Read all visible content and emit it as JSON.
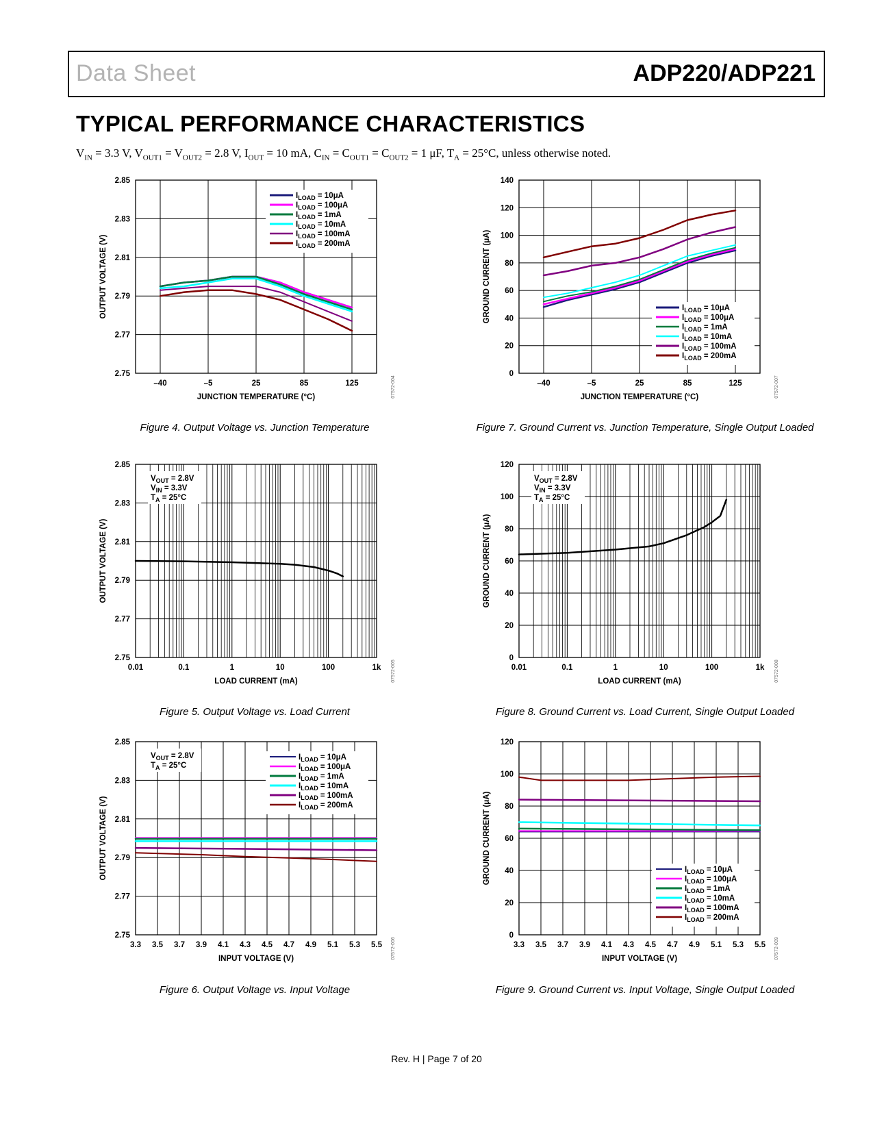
{
  "header": {
    "left": "Data Sheet",
    "right": "ADP220/ADP221"
  },
  "section_title": "TYPICAL PERFORMANCE CHARACTERISTICS",
  "conditions": [
    {
      "t": "V"
    },
    {
      "s": "IN"
    },
    {
      "t": " = 3.3 V, V"
    },
    {
      "s": "OUT1"
    },
    {
      "t": " = V"
    },
    {
      "s": "OUT2"
    },
    {
      "t": " = 2.8 V, I"
    },
    {
      "s": "OUT"
    },
    {
      "t": " = 10 mA, C"
    },
    {
      "s": "IN"
    },
    {
      "t": " = C"
    },
    {
      "s": "OUT1"
    },
    {
      "t": " = C"
    },
    {
      "s": "OUT2"
    },
    {
      "t": " = 1 μF, T"
    },
    {
      "s": "A"
    },
    {
      "t": " = 25°C, unless otherwise noted."
    }
  ],
  "footer": "Rev. H | Page 7 of 20",
  "colors": {
    "10uA": "#1a1a7a",
    "100uA": "#ff00ff",
    "1mA": "#007a3d",
    "10mA": "#00ffff",
    "100mA": "#800080",
    "200mA": "#800000",
    "single": "#000000"
  },
  "chart_data": [
    {
      "id": "fig4",
      "type": "line",
      "caption": "Figure 4. Output Voltage vs. Junction Temperature",
      "code": "07572-004",
      "xlabel": "JUNCTION TEMPERATURE (°C)",
      "ylabel": "OUTPUT VOLTAGE (V)",
      "x_ticks": [
        "–40",
        "–5",
        "25",
        "85",
        "125"
      ],
      "y_ticks": [
        "2.85",
        "2.83",
        "2.81",
        "2.79",
        "2.77",
        "2.75"
      ],
      "ylim": [
        2.75,
        2.85
      ],
      "legend": "top-right",
      "legend_line": "long",
      "series": [
        {
          "key": "10uA",
          "name": "10μA",
          "x": [
            0,
            0.5,
            1,
            1.5,
            2,
            2.5,
            3,
            3.5,
            4
          ],
          "y": [
            2.795,
            2.797,
            2.798,
            2.8,
            2.8,
            2.797,
            2.792,
            2.788,
            2.784
          ],
          "w": 2.5
        },
        {
          "key": "100uA",
          "name": "100μA",
          "x": [
            0,
            0.5,
            1,
            1.5,
            2,
            2.5,
            3,
            3.5,
            4
          ],
          "y": [
            2.795,
            2.797,
            2.798,
            2.8,
            2.8,
            2.797,
            2.792,
            2.788,
            2.784
          ],
          "w": 2.5
        },
        {
          "key": "1mA",
          "name": "1mA",
          "x": [
            0,
            0.5,
            1,
            1.5,
            2,
            2.5,
            3,
            3.5,
            4
          ],
          "y": [
            2.795,
            2.797,
            2.798,
            2.8,
            2.8,
            2.796,
            2.791,
            2.787,
            2.783
          ],
          "w": 2.5
        },
        {
          "key": "10mA",
          "name": "10mA",
          "x": [
            0,
            0.5,
            1,
            1.5,
            2,
            2.5,
            3,
            3.5,
            4
          ],
          "y": [
            2.794,
            2.795,
            2.797,
            2.799,
            2.799,
            2.795,
            2.79,
            2.786,
            2.782
          ],
          "w": 2.5
        },
        {
          "key": "100mA",
          "name": "100mA",
          "x": [
            0,
            0.5,
            1,
            1.5,
            2,
            2.5,
            3,
            3.5,
            4
          ],
          "y": [
            2.793,
            2.794,
            2.795,
            2.795,
            2.795,
            2.792,
            2.787,
            2.782,
            2.777
          ],
          "w": 2
        },
        {
          "key": "200mA",
          "name": "200mA",
          "x": [
            0,
            0.5,
            1,
            1.5,
            2,
            2.5,
            3,
            3.5,
            4
          ],
          "y": [
            2.79,
            2.792,
            2.793,
            2.793,
            2.791,
            2.788,
            2.783,
            2.778,
            2.772
          ],
          "w": 2.5
        }
      ]
    },
    {
      "id": "fig7",
      "type": "line",
      "caption": "Figure 7. Ground Current vs. Junction Temperature, Single Output Loaded",
      "code": "07572-007",
      "xlabel": "JUNCTION TEMPERATURE (°C)",
      "ylabel": "GROUND CURRENT (μA)",
      "x_ticks": [
        "–40",
        "–5",
        "25",
        "85",
        "125"
      ],
      "y_ticks": [
        "140",
        "120",
        "100",
        "80",
        "60",
        "40",
        "20",
        "0"
      ],
      "ylim": [
        0,
        140
      ],
      "legend": "bottom-right",
      "legend_line": "long",
      "series": [
        {
          "key": "10uA",
          "name": "10μA",
          "x": [
            0,
            0.5,
            1,
            1.5,
            2,
            2.5,
            3,
            3.5,
            4
          ],
          "y": [
            48,
            53,
            57,
            61,
            66,
            73,
            80,
            85,
            89
          ],
          "w": 2.5
        },
        {
          "key": "100uA",
          "name": "100μA",
          "x": [
            0,
            0.5,
            1,
            1.5,
            2,
            2.5,
            3,
            3.5,
            4
          ],
          "y": [
            50,
            54,
            58,
            62,
            67,
            74,
            81,
            86,
            90
          ],
          "w": 2.5
        },
        {
          "key": "1mA",
          "name": "1mA",
          "x": [
            0,
            0.5,
            1,
            1.5,
            2,
            2.5,
            3,
            3.5,
            4
          ],
          "y": [
            52,
            56,
            59,
            63,
            68,
            75,
            82,
            87,
            91
          ],
          "w": 2
        },
        {
          "key": "10mA",
          "name": "10mA",
          "x": [
            0,
            0.5,
            1,
            1.5,
            2,
            2.5,
            3,
            3.5,
            4
          ],
          "y": [
            55,
            58,
            62,
            66,
            71,
            78,
            85,
            89,
            93
          ],
          "w": 2
        },
        {
          "key": "100mA",
          "name": "100mA",
          "x": [
            0,
            0.5,
            1,
            1.5,
            2,
            2.5,
            3,
            3.5,
            4
          ],
          "y": [
            71,
            74,
            78,
            80,
            84,
            90,
            97,
            102,
            106
          ],
          "w": 2.5
        },
        {
          "key": "200mA",
          "name": "200mA",
          "x": [
            0,
            0.5,
            1,
            1.5,
            2,
            2.5,
            3,
            3.5,
            4
          ],
          "y": [
            84,
            88,
            92,
            94,
            98,
            104,
            111,
            115,
            118
          ],
          "w": 2.5
        }
      ]
    },
    {
      "id": "fig5",
      "type": "line",
      "caption": "Figure 5. Output Voltage vs. Load Current",
      "code": "07572-005",
      "xlabel": "LOAD CURRENT (mA)",
      "ylabel": "OUTPUT VOLTAGE (V)",
      "xscale": "log",
      "xlim": [
        0.01,
        1000
      ],
      "x_ticks": [
        "0.01",
        "0.1",
        "1",
        "10",
        "100",
        "1k"
      ],
      "y_ticks": [
        "2.85",
        "2.83",
        "2.81",
        "2.79",
        "2.77",
        "2.75"
      ],
      "ylim": [
        2.75,
        2.85
      ],
      "annotation": [
        {
          "main": "V",
          "sub": "OUT",
          "rest": " = 2.8V"
        },
        {
          "main": "V",
          "sub": "IN",
          "rest": " = 3.3V"
        },
        {
          "main": "T",
          "sub": "A",
          "rest": " = 25°C"
        }
      ],
      "series": [
        {
          "key": "single",
          "name": "",
          "x": [
            0.01,
            0.1,
            1,
            10,
            20,
            50,
            100,
            150,
            200
          ],
          "y": [
            2.8,
            2.7998,
            2.7993,
            2.7985,
            2.798,
            2.7968,
            2.795,
            2.7935,
            2.792
          ],
          "w": 2.5
        }
      ]
    },
    {
      "id": "fig8",
      "type": "line",
      "caption": "Figure 8. Ground Current vs. Load Current, Single Output Loaded",
      "code": "07572-008",
      "xlabel": "LOAD CURRENT (mA)",
      "ylabel": "GROUND CURRENT (μA)",
      "xscale": "log",
      "xlim": [
        0.01,
        1000
      ],
      "x_ticks": [
        "0.01",
        "0.1",
        "1",
        "10",
        "100",
        "1k"
      ],
      "y_ticks": [
        "120",
        "100",
        "80",
        "60",
        "40",
        "20",
        "0"
      ],
      "ylim": [
        0,
        120
      ],
      "annotation": [
        {
          "main": "V",
          "sub": "OUT",
          "rest": " = 2.8V"
        },
        {
          "main": "V",
          "sub": "IN",
          "rest": " = 3.3V"
        },
        {
          "main": "T",
          "sub": "A",
          "rest": " = 25°C"
        }
      ],
      "series": [
        {
          "key": "single",
          "name": "",
          "x": [
            0.01,
            0.1,
            1,
            5,
            10,
            30,
            70,
            100,
            150,
            200
          ],
          "y": [
            64,
            65,
            67,
            69,
            71,
            76,
            81,
            84,
            88,
            98
          ],
          "w": 2.5
        }
      ]
    },
    {
      "id": "fig6",
      "type": "line",
      "caption": "Figure 6. Output Voltage vs. Input Voltage",
      "code": "07572-006",
      "xlabel": "INPUT VOLTAGE (V)",
      "ylabel": "OUTPUT VOLTAGE (V)",
      "x_ticks": [
        "3.3",
        "3.5",
        "3.7",
        "3.9",
        "4.1",
        "4.3",
        "4.5",
        "4.7",
        "4.9",
        "5.1",
        "5.3",
        "5.5"
      ],
      "y_ticks": [
        "2.85",
        "2.83",
        "2.81",
        "2.79",
        "2.77",
        "2.75"
      ],
      "ylim": [
        2.75,
        2.85
      ],
      "legend": "top-right",
      "legend_line": "short",
      "annotation": [
        {
          "main": "V",
          "sub": "OUT",
          "rest": " = 2.8V"
        },
        {
          "main": "T",
          "sub": "A",
          "rest": " = 25°C"
        }
      ],
      "series": [
        {
          "key": "10uA",
          "name": "10μA",
          "x": [
            0,
            11
          ],
          "y": [
            2.8,
            2.8
          ],
          "w": 1.5
        },
        {
          "key": "100uA",
          "name": "100μA",
          "x": [
            0,
            11
          ],
          "y": [
            2.8002,
            2.8002
          ],
          "w": 2
        },
        {
          "key": "1mA",
          "name": "1mA",
          "x": [
            0,
            11
          ],
          "y": [
            2.7997,
            2.7997
          ],
          "w": 2.5
        },
        {
          "key": "10mA",
          "name": "10mA",
          "x": [
            0,
            11
          ],
          "y": [
            2.7985,
            2.7985
          ],
          "w": 2.5
        },
        {
          "key": "100mA",
          "name": "100mA",
          "x": [
            0,
            5,
            11
          ],
          "y": [
            2.795,
            2.7945,
            2.7938
          ],
          "w": 2.5
        },
        {
          "key": "200mA",
          "name": "200mA",
          "x": [
            0,
            3,
            5,
            7,
            9,
            11
          ],
          "y": [
            2.7925,
            2.7915,
            2.7905,
            2.7898,
            2.789,
            2.788
          ],
          "w": 2
        }
      ]
    },
    {
      "id": "fig9",
      "type": "line",
      "caption": "Figure 9. Ground Current vs. Input Voltage, Single Output Loaded",
      "code": "07572-009",
      "xlabel": "INPUT VOLTAGE (V)",
      "ylabel": "GROUND CURRENT (μA)",
      "x_ticks": [
        "3.3",
        "3.5",
        "3.7",
        "3.9",
        "4.1",
        "4.3",
        "4.5",
        "4.7",
        "4.9",
        "5.1",
        "5.3",
        "5.5"
      ],
      "y_ticks": [
        "120",
        "100",
        "80",
        "60",
        "40",
        "20",
        "0"
      ],
      "ylim": [
        0,
        120
      ],
      "legend": "bottom-right",
      "legend_line": "short",
      "series": [
        {
          "key": "10uA",
          "name": "10μA",
          "x": [
            0,
            11
          ],
          "y": [
            64,
            64
          ],
          "w": 1.5
        },
        {
          "key": "100uA",
          "name": "100μA",
          "x": [
            0,
            11
          ],
          "y": [
            64.5,
            64.5
          ],
          "w": 2
        },
        {
          "key": "1mA",
          "name": "1mA",
          "x": [
            0,
            11
          ],
          "y": [
            66,
            65
          ],
          "w": 2.5
        },
        {
          "key": "10mA",
          "name": "10mA",
          "x": [
            0,
            11
          ],
          "y": [
            70,
            68
          ],
          "w": 2.5
        },
        {
          "key": "100mA",
          "name": "100mA",
          "x": [
            0,
            11
          ],
          "y": [
            84,
            83
          ],
          "w": 2.5
        },
        {
          "key": "200mA",
          "name": "200mA",
          "x": [
            0,
            1,
            3,
            5,
            7,
            9,
            11
          ],
          "y": [
            98,
            96,
            96,
            96,
            97,
            98,
            98.5
          ],
          "w": 2
        }
      ]
    }
  ]
}
